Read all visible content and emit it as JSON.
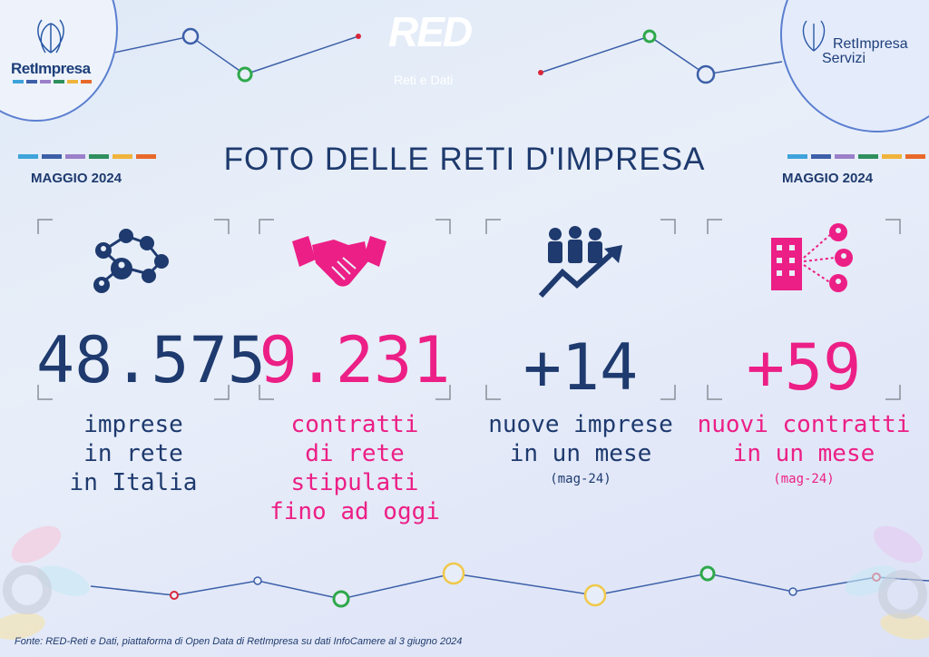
{
  "logos": {
    "left": "RetImpresa",
    "right_line1": "RetImpresa",
    "right_line2": "Servizi",
    "center_main": "RED",
    "center_sub": "Reti e Dati"
  },
  "title": "FOTO DELLE RETI D'IMPRESA",
  "month_left": "MAGGIO 2024",
  "month_right": "MAGGIO 2024",
  "brand_colors": [
    "#3ea3db",
    "#3c5fa8",
    "#2f8f5e",
    "#f0b43c",
    "#e8692a",
    "#9b7fc9"
  ],
  "stats": [
    {
      "icon": "network-icon",
      "value": "48.575",
      "lines": [
        "imprese",
        "in rete",
        "in Italia"
      ],
      "note": "",
      "color": "#1e3a6e"
    },
    {
      "icon": "handshake-icon",
      "value": "9.231",
      "lines": [
        "contratti",
        "di rete stipulati",
        "fino ad oggi"
      ],
      "note": "",
      "color": "#ec1f86"
    },
    {
      "icon": "growth-people-icon",
      "value": "+14",
      "lines": [
        "nuove imprese",
        "in un mese"
      ],
      "note": "(mag-24)",
      "color": "#1e3a6e"
    },
    {
      "icon": "building-network-icon",
      "value": "+59",
      "lines": [
        "nuovi contratti",
        "in un mese"
      ],
      "note": "(mag-24)",
      "color": "#ec1f86"
    }
  ],
  "footer": "Fonte: RED-Reti e Dati, piattaforma di Open Data di RetImpresa su dati InfoCamere al 3 giugno 2024"
}
